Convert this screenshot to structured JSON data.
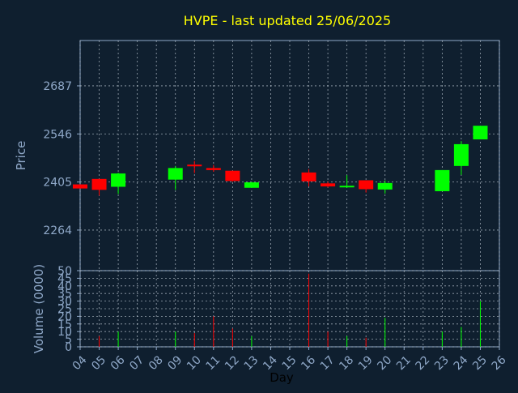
{
  "title": "HVPE - last updated 25/06/2025",
  "colors": {
    "background": "#0f1f2f",
    "title": "#ffff00",
    "axis_text": "#8fa8c8",
    "frame": "#8fa8c8",
    "grid": "#c8d2dc",
    "up": "#00ff00",
    "down": "#ff0000"
  },
  "chart_data": [
    {
      "type": "candlestick",
      "title": "HVPE - last updated 25/06/2025",
      "ylabel": "Price",
      "ylim": [
        2145,
        2820
      ],
      "yticks": [
        2264,
        2405,
        2546,
        2687
      ],
      "x_domain": [
        4,
        26
      ],
      "grid": true,
      "candles": [
        {
          "day": 4,
          "open": 2398,
          "high": 2398,
          "low": 2386,
          "close": 2386
        },
        {
          "day": 5,
          "open": 2414,
          "high": 2414,
          "low": 2365,
          "close": 2382
        },
        {
          "day": 6,
          "open": 2391,
          "high": 2432,
          "low": 2370,
          "close": 2430
        },
        {
          "day": 9,
          "open": 2412,
          "high": 2452,
          "low": 2382,
          "close": 2446
        },
        {
          "day": 10,
          "open": 2456,
          "high": 2467,
          "low": 2431,
          "close": 2451
        },
        {
          "day": 11,
          "open": 2446,
          "high": 2455,
          "low": 2435,
          "close": 2440
        },
        {
          "day": 12,
          "open": 2438,
          "high": 2438,
          "low": 2406,
          "close": 2408
        },
        {
          "day": 13,
          "open": 2388,
          "high": 2405,
          "low": 2388,
          "close": 2404
        },
        {
          "day": 16,
          "open": 2433,
          "high": 2443,
          "low": 2392,
          "close": 2407
        },
        {
          "day": 17,
          "open": 2401,
          "high": 2406,
          "low": 2389,
          "close": 2392
        },
        {
          "day": 18,
          "open": 2390,
          "high": 2425,
          "low": 2388,
          "close": 2394
        },
        {
          "day": 19,
          "open": 2410,
          "high": 2410,
          "low": 2374,
          "close": 2384
        },
        {
          "day": 20,
          "open": 2383,
          "high": 2410,
          "low": 2371,
          "close": 2402
        },
        {
          "day": 23,
          "open": 2378,
          "high": 2440,
          "low": 2378,
          "close": 2440
        },
        {
          "day": 24,
          "open": 2452,
          "high": 2525,
          "low": 2426,
          "close": 2516
        },
        {
          "day": 25,
          "open": 2530,
          "high": 2570,
          "low": 2530,
          "close": 2570
        }
      ]
    },
    {
      "type": "bar",
      "ylabel": "Volume (0000)",
      "xlabel": "Day",
      "ylim": [
        0,
        50
      ],
      "yticks": [
        0,
        5,
        10,
        15,
        20,
        25,
        30,
        35,
        40,
        45,
        50
      ],
      "x_domain": [
        4,
        26
      ],
      "x_ticks": [
        "04",
        "05",
        "06",
        "07",
        "08",
        "09",
        "10",
        "11",
        "12",
        "13",
        "14",
        "15",
        "16",
        "17",
        "18",
        "19",
        "20",
        "21",
        "22",
        "23",
        "24",
        "25",
        "26"
      ],
      "grid": true,
      "bars": [
        {
          "day": 5,
          "value": 7,
          "color": "down"
        },
        {
          "day": 6,
          "value": 10,
          "color": "up"
        },
        {
          "day": 9,
          "value": 10,
          "color": "up"
        },
        {
          "day": 10,
          "value": 9,
          "color": "down"
        },
        {
          "day": 11,
          "value": 20,
          "color": "down"
        },
        {
          "day": 12,
          "value": 12,
          "color": "down"
        },
        {
          "day": 13,
          "value": 7,
          "color": "up"
        },
        {
          "day": 16,
          "value": 48,
          "color": "down"
        },
        {
          "day": 17,
          "value": 10,
          "color": "down"
        },
        {
          "day": 18,
          "value": 7,
          "color": "up"
        },
        {
          "day": 19,
          "value": 6,
          "color": "down"
        },
        {
          "day": 20,
          "value": 19,
          "color": "up"
        },
        {
          "day": 23,
          "value": 10,
          "color": "up"
        },
        {
          "day": 24,
          "value": 13,
          "color": "up"
        },
        {
          "day": 25,
          "value": 30,
          "color": "up"
        }
      ]
    }
  ]
}
